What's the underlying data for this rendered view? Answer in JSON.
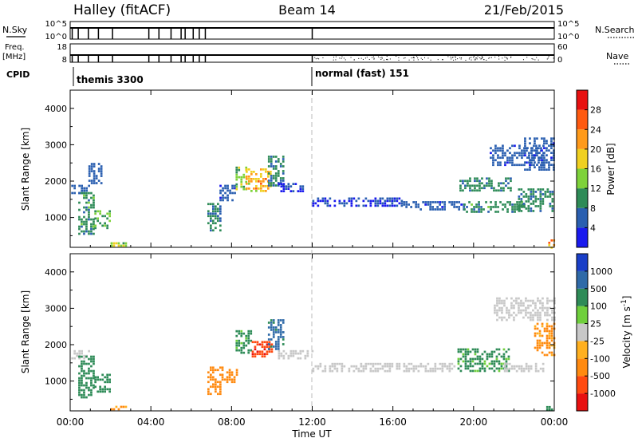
{
  "header": {
    "station": "Halley (fitACF)",
    "beam": "Beam 14",
    "date": "21/Feb/2015"
  },
  "status_panels": {
    "nsky": {
      "left_label": "N.Sky",
      "right_label": "N.Search",
      "left_ticks": [
        "10^5",
        "10^0"
      ],
      "right_ticks": [
        "10^5",
        "10^0"
      ]
    },
    "freq": {
      "left_label_top": "Freq.",
      "left_label_bottom": "[MHz]",
      "right_label": "Nave",
      "left_ticks": [
        "18",
        "8"
      ],
      "right_ticks": [
        "60",
        "0"
      ]
    },
    "cpid": {
      "label": "CPID",
      "segments": [
        {
          "text": "themis 3300",
          "start_hour": 0.0
        },
        {
          "text": "normal (fast) 151",
          "start_hour": 12.0
        }
      ]
    },
    "drop_hours": [
      0.1,
      0.4,
      0.9,
      1.4,
      2.1,
      3.9,
      4.4,
      5.0,
      5.5,
      5.7,
      6.1,
      6.4,
      6.7,
      12.0
    ]
  },
  "chart_data": [
    {
      "type": "heatmap",
      "panel": "power",
      "ylabel": "Slant Range [km]",
      "colorbar_label": "Power [dB]",
      "x_range_hours": [
        0,
        24
      ],
      "ylim_km": [
        180,
        4500
      ],
      "y_ticks": [
        1000,
        2000,
        3000,
        4000
      ],
      "colorbar_ticks": [
        {
          "value": 4,
          "label": "4"
        },
        {
          "value": 8,
          "label": "8"
        },
        {
          "value": 12,
          "label": "12"
        },
        {
          "value": 16,
          "label": "16"
        },
        {
          "value": 20,
          "label": "20"
        },
        {
          "value": 24,
          "label": "24"
        },
        {
          "value": 28,
          "label": "28"
        }
      ],
      "colorbar_colors": [
        "#1a1aee",
        "#2a5fb0",
        "#2e8b57",
        "#7ed23a",
        "#f0d020",
        "#ff9a1a",
        "#ff5a10",
        "#e81010"
      ],
      "regions": [
        {
          "t0": 0.05,
          "t1": 0.9,
          "r0": 1700,
          "r1": 1900,
          "value": 6
        },
        {
          "t0": 0.4,
          "t1": 1.2,
          "r0": 550,
          "r1": 1700,
          "value": 10
        },
        {
          "t0": 0.9,
          "t1": 1.5,
          "r0": 1950,
          "r1": 2500,
          "value": 6
        },
        {
          "t0": 1.2,
          "t1": 2.0,
          "r0": 700,
          "r1": 1200,
          "value": 12
        },
        {
          "t0": 2.0,
          "t1": 2.8,
          "r0": 220,
          "r1": 320,
          "value": 14
        },
        {
          "t0": 6.8,
          "t1": 7.5,
          "r0": 650,
          "r1": 1400,
          "value": 9
        },
        {
          "t0": 7.4,
          "t1": 8.2,
          "r0": 1500,
          "r1": 1900,
          "value": 5
        },
        {
          "t0": 8.2,
          "t1": 8.7,
          "r0": 1750,
          "r1": 2400,
          "value": 14
        },
        {
          "t0": 8.7,
          "t1": 9.9,
          "r0": 1750,
          "r1": 2350,
          "value": 20
        },
        {
          "t0": 9.8,
          "t1": 10.6,
          "r0": 1900,
          "r1": 2700,
          "value": 9
        },
        {
          "t0": 10.3,
          "t1": 11.5,
          "r0": 1750,
          "r1": 1950,
          "value": 4
        },
        {
          "t0": 12.0,
          "t1": 16.5,
          "r0": 1350,
          "r1": 1550,
          "value": 4
        },
        {
          "t0": 16.5,
          "t1": 19.5,
          "r0": 1250,
          "r1": 1450,
          "value": 5
        },
        {
          "t0": 19.5,
          "t1": 22.5,
          "r0": 1150,
          "r1": 1450,
          "value": 10
        },
        {
          "t0": 22.2,
          "t1": 23.9,
          "r0": 1200,
          "r1": 1800,
          "value": 9
        },
        {
          "t0": 19.3,
          "t1": 21.8,
          "r0": 1750,
          "r1": 2100,
          "value": 9
        },
        {
          "t0": 20.8,
          "t1": 23.5,
          "r0": 2450,
          "r1": 3000,
          "value": 5
        },
        {
          "t0": 22.5,
          "t1": 24.0,
          "r0": 2300,
          "r1": 3200,
          "value": 5
        },
        {
          "t0": 23.7,
          "t1": 24.0,
          "r0": 200,
          "r1": 400,
          "value": 22
        }
      ]
    },
    {
      "type": "heatmap",
      "panel": "velocity",
      "ylabel": "Slant Range [km]",
      "xlabel": "Time UT",
      "colorbar_label": "Velocity [m s",
      "colorbar_label_exp": "-1",
      "colorbar_label_close": "]",
      "x_range_hours": [
        0,
        24
      ],
      "x_ticks": [
        "00:00",
        "04:00",
        "08:00",
        "12:00",
        "16:00",
        "20:00",
        "00:00"
      ],
      "ylim_km": [
        180,
        4500
      ],
      "y_ticks": [
        1000,
        2000,
        3000,
        4000
      ],
      "colorbar_ticks": [
        {
          "value": 1000,
          "label": "1000"
        },
        {
          "value": 500,
          "label": "500"
        },
        {
          "value": 100,
          "label": "100"
        },
        {
          "value": 25,
          "label": "25"
        },
        {
          "value": -25,
          "label": "-25"
        },
        {
          "value": -100,
          "label": "-100"
        },
        {
          "value": -500,
          "label": "-500"
        },
        {
          "value": -1000,
          "label": "-1000"
        }
      ],
      "colorbar_colors": [
        "#1a3fc8",
        "#2f6aa8",
        "#2e8b57",
        "#6fcf3c",
        "#c8c8c8",
        "#ffb020",
        "#ff8a10",
        "#ff4a10",
        "#e81010"
      ],
      "regions": [
        {
          "t0": 0.05,
          "t1": 0.9,
          "r0": 1650,
          "r1": 1850,
          "value": 0
        },
        {
          "t0": 0.4,
          "t1": 1.2,
          "r0": 550,
          "r1": 1700,
          "value": 300
        },
        {
          "t0": 1.2,
          "t1": 2.0,
          "r0": 700,
          "r1": 1200,
          "value": 400
        },
        {
          "t0": 2.0,
          "t1": 2.8,
          "r0": 220,
          "r1": 320,
          "value": -120
        },
        {
          "t0": 6.8,
          "t1": 7.5,
          "r0": 650,
          "r1": 1400,
          "value": -300
        },
        {
          "t0": 7.5,
          "t1": 8.3,
          "r0": 1000,
          "r1": 1400,
          "value": -200
        },
        {
          "t0": 8.2,
          "t1": 9.0,
          "r0": 1800,
          "r1": 2400,
          "value": 120
        },
        {
          "t0": 9.0,
          "t1": 10.0,
          "r0": 1700,
          "r1": 2100,
          "value": -900
        },
        {
          "t0": 9.8,
          "t1": 10.6,
          "r0": 1900,
          "r1": 2700,
          "value": 600
        },
        {
          "t0": 10.3,
          "t1": 12.0,
          "r0": 1650,
          "r1": 1850,
          "value": 0
        },
        {
          "t0": 12.0,
          "t1": 19.0,
          "r0": 1300,
          "r1": 1500,
          "value": 0
        },
        {
          "t0": 19.2,
          "t1": 21.8,
          "r0": 1250,
          "r1": 1900,
          "value": 120
        },
        {
          "t0": 21.5,
          "t1": 23.5,
          "r0": 1250,
          "r1": 1500,
          "value": 0
        },
        {
          "t0": 21.0,
          "t1": 24.0,
          "r0": 2700,
          "r1": 3300,
          "value": 0
        },
        {
          "t0": 23.0,
          "t1": 24.0,
          "r0": 1700,
          "r1": 2600,
          "value": -120
        },
        {
          "t0": 23.6,
          "t1": 24.0,
          "r0": 200,
          "r1": 380,
          "value": 120
        }
      ]
    }
  ]
}
